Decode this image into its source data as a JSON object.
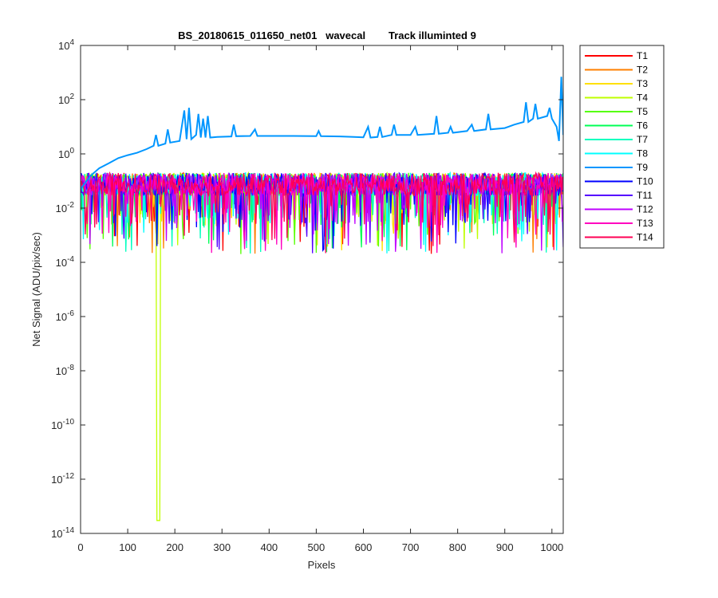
{
  "chart_data": {
    "type": "line",
    "title": "BS_20180615_011650_net01   wavecal        Track illuminted 9",
    "xlabel": "Pixels",
    "ylabel": "Net Signal (ADU/pix/sec)",
    "xlim": [
      0,
      1024
    ],
    "ylim": [
      1e-14,
      10000
    ],
    "yscale": "log",
    "xticks": [
      "0",
      "100",
      "200",
      "300",
      "400",
      "500",
      "600",
      "700",
      "800",
      "900",
      "1000"
    ],
    "yticks": [
      {
        "base": "10",
        "exp": "-14"
      },
      {
        "base": "10",
        "exp": "-12"
      },
      {
        "base": "10",
        "exp": "-10"
      },
      {
        "base": "10",
        "exp": "-8"
      },
      {
        "base": "10",
        "exp": "-6"
      },
      {
        "base": "10",
        "exp": "-4"
      },
      {
        "base": "10",
        "exp": "-2"
      },
      {
        "base": "10",
        "exp": "0"
      },
      {
        "base": "10",
        "exp": "2"
      },
      {
        "base": "10",
        "exp": "4"
      }
    ],
    "grid": false,
    "legend_position": "outside-right",
    "series": [
      {
        "name": "T1",
        "color": "#ff0000"
      },
      {
        "name": "T2",
        "color": "#ff7f00"
      },
      {
        "name": "T3",
        "color": "#ffe000"
      },
      {
        "name": "T4",
        "color": "#bfff00"
      },
      {
        "name": "T5",
        "color": "#55ff00"
      },
      {
        "name": "T6",
        "color": "#00ff55"
      },
      {
        "name": "T7",
        "color": "#00ffbf"
      },
      {
        "name": "T8",
        "color": "#00ffff"
      },
      {
        "name": "T9",
        "color": "#0096ff",
        "points": [
          [
            0,
            0.05
          ],
          [
            20,
            0.15
          ],
          [
            40,
            0.3
          ],
          [
            60,
            0.45
          ],
          [
            80,
            0.7
          ],
          [
            100,
            0.9
          ],
          [
            120,
            1.1
          ],
          [
            140,
            1.5
          ],
          [
            155,
            2.0
          ],
          [
            160,
            5
          ],
          [
            165,
            2.0
          ],
          [
            180,
            2.4
          ],
          [
            185,
            8
          ],
          [
            190,
            2.6
          ],
          [
            210,
            3.0
          ],
          [
            220,
            40
          ],
          [
            225,
            3.5
          ],
          [
            230,
            50
          ],
          [
            235,
            3.5
          ],
          [
            245,
            5
          ],
          [
            250,
            30
          ],
          [
            255,
            4
          ],
          [
            260,
            20
          ],
          [
            265,
            4
          ],
          [
            270,
            25
          ],
          [
            275,
            4
          ],
          [
            290,
            4.2
          ],
          [
            320,
            4.4
          ],
          [
            325,
            12
          ],
          [
            330,
            4.5
          ],
          [
            360,
            4.6
          ],
          [
            370,
            8
          ],
          [
            375,
            4.6
          ],
          [
            400,
            4.6
          ],
          [
            450,
            4.6
          ],
          [
            500,
            4.5
          ],
          [
            505,
            7
          ],
          [
            510,
            4.5
          ],
          [
            550,
            4.4
          ],
          [
            580,
            4.2
          ],
          [
            600,
            4.1
          ],
          [
            610,
            10
          ],
          [
            615,
            4.0
          ],
          [
            630,
            4.2
          ],
          [
            635,
            10
          ],
          [
            640,
            4.2
          ],
          [
            660,
            5
          ],
          [
            665,
            12
          ],
          [
            670,
            5
          ],
          [
            700,
            5
          ],
          [
            710,
            10
          ],
          [
            715,
            5
          ],
          [
            750,
            5.5
          ],
          [
            755,
            25
          ],
          [
            760,
            5.5
          ],
          [
            780,
            6
          ],
          [
            785,
            10
          ],
          [
            790,
            6
          ],
          [
            820,
            7
          ],
          [
            830,
            12
          ],
          [
            835,
            7
          ],
          [
            860,
            8
          ],
          [
            865,
            30
          ],
          [
            870,
            8
          ],
          [
            900,
            9
          ],
          [
            920,
            12
          ],
          [
            940,
            15
          ],
          [
            945,
            80
          ],
          [
            950,
            15
          ],
          [
            960,
            20
          ],
          [
            965,
            70
          ],
          [
            970,
            20
          ],
          [
            990,
            25
          ],
          [
            995,
            50
          ],
          [
            1000,
            20
          ],
          [
            1010,
            10
          ],
          [
            1015,
            3
          ],
          [
            1020,
            700
          ],
          [
            1024,
            5
          ]
        ]
      },
      {
        "name": "T10",
        "color": "#0000ff"
      },
      {
        "name": "T11",
        "color": "#5500ff"
      },
      {
        "name": "T12",
        "color": "#bf00ff"
      },
      {
        "name": "T13",
        "color": "#ff00bf"
      },
      {
        "name": "T14",
        "color": "#ff0055"
      }
    ],
    "noise_band": {
      "typical_range": [
        0.01,
        0.2
      ],
      "min_dip": 0.0002
    },
    "anomaly": {
      "series": "T4",
      "x_range": [
        161,
        168
      ],
      "min_value": 3e-14
    }
  }
}
